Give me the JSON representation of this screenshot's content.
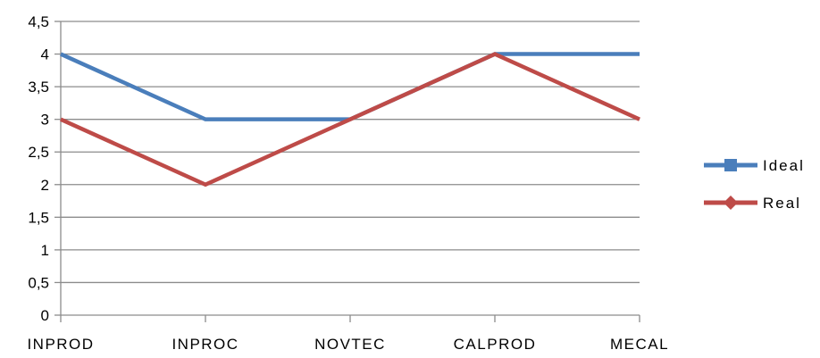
{
  "chart_data": {
    "type": "line",
    "categories": [
      "INPROD",
      "INPROC",
      "NOVTEC",
      "CALPROD",
      "MECAL"
    ],
    "series": [
      {
        "name": "Ideal",
        "values": [
          4,
          3,
          3,
          4,
          4
        ],
        "color": "#4a7ebb",
        "marker": "square"
      },
      {
        "name": "Real",
        "values": [
          3,
          2,
          3,
          4,
          3
        ],
        "color": "#be4b48",
        "marker": "diamond"
      }
    ],
    "ylim": [
      0,
      4.5
    ],
    "yticks": [
      "0",
      "0,5",
      "1",
      "1,5",
      "2",
      "2,5",
      "3",
      "3,5",
      "4",
      "4,5"
    ],
    "grid": true,
    "legend_position": "right",
    "title": "",
    "xlabel": "",
    "ylabel": ""
  }
}
